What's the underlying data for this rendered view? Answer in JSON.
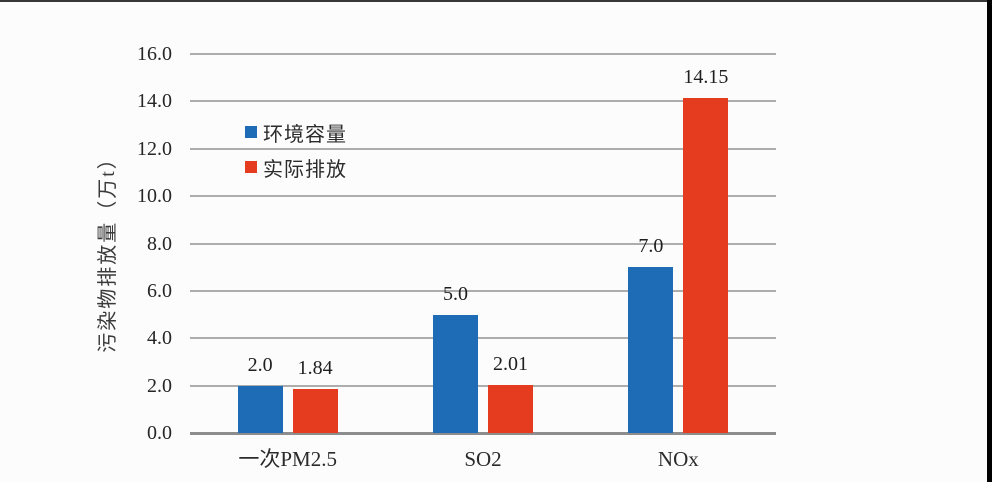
{
  "page": {
    "background_color": "#fcfcfc",
    "right_edge_bar_color": "#000000"
  },
  "chart_data": {
    "type": "bar",
    "title": "",
    "ylabel": "污染物排放量（万t）",
    "xlabel": "",
    "categories": [
      "一次PM2.5",
      "SO2",
      "NOx"
    ],
    "series": [
      {
        "name": "环境容量",
        "color": "#1e6cb5",
        "values": [
          2.0,
          5.0,
          7.0
        ],
        "value_labels": [
          "2.0",
          "5.0",
          "7.0"
        ]
      },
      {
        "name": "实际排放",
        "color": "#e53c1f",
        "values": [
          1.84,
          2.01,
          14.15
        ],
        "value_labels": [
          "1.84",
          "2.01",
          "14.15"
        ]
      }
    ],
    "ylim": [
      0,
      16
    ],
    "ytick_step": 2,
    "yticks": [
      "0.0",
      "2.0",
      "4.0",
      "6.0",
      "8.0",
      "10.0",
      "12.0",
      "14.0",
      "16.0"
    ],
    "grid": true,
    "gridline_color": "#adadad",
    "axis_line_color": "#8d8d8d",
    "legend_position": "inside-upper-left"
  }
}
